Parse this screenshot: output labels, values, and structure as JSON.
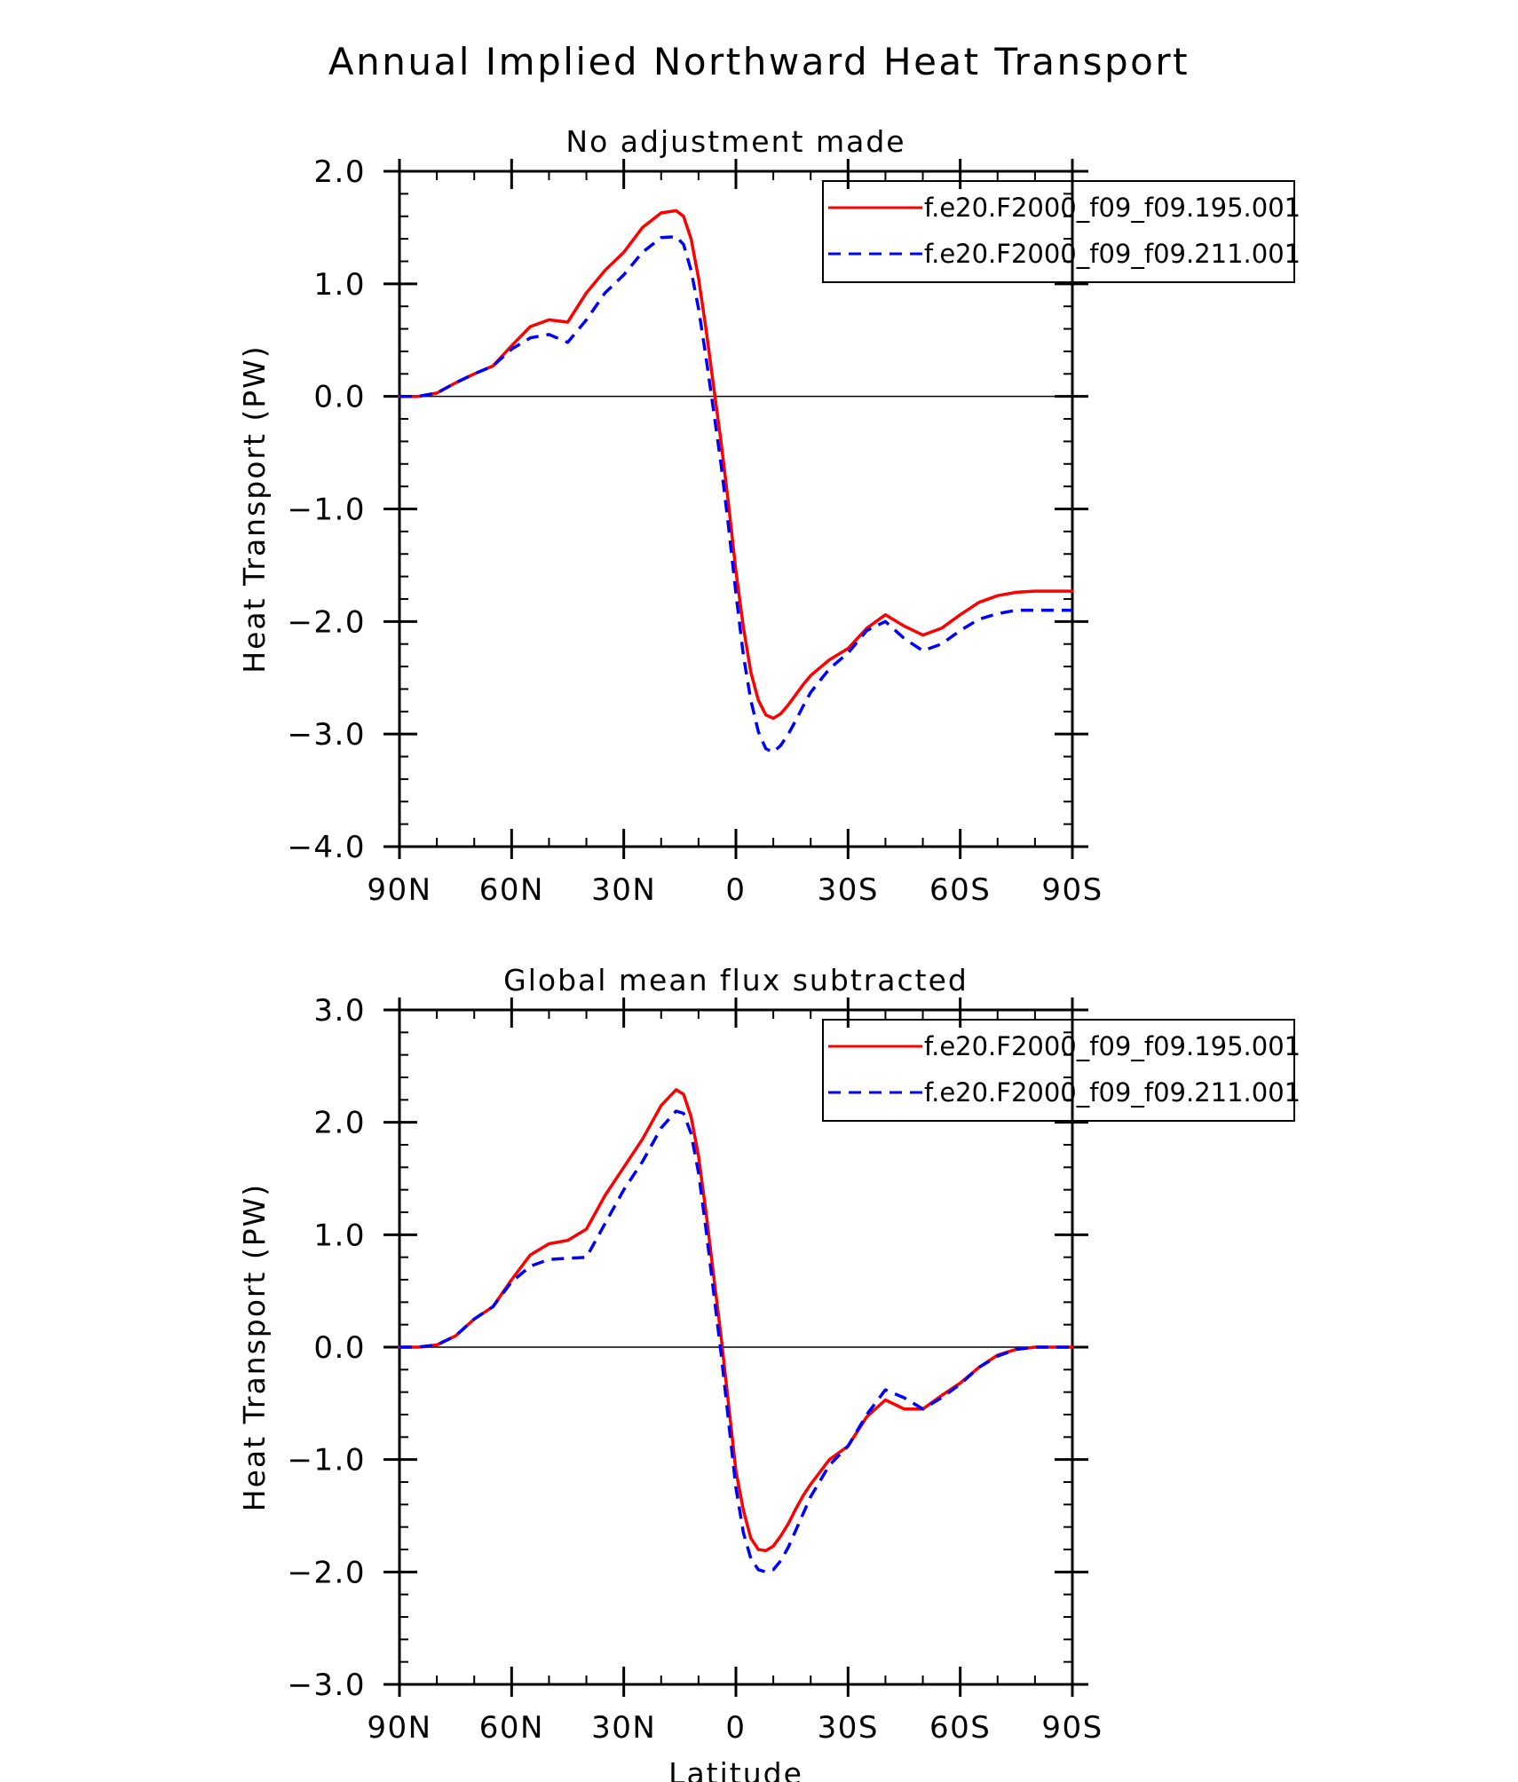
{
  "figure": {
    "title": "Annual Implied Northward Heat Transport"
  },
  "chart_data": [
    {
      "type": "line",
      "title": "No adjustment made",
      "xlabel": "",
      "ylabel": "Heat Transport (PW)",
      "xlim": [
        90,
        -90
      ],
      "ylim": [
        -4.0,
        2.0
      ],
      "x_ticks": [
        {
          "value": 90,
          "label": "90N"
        },
        {
          "value": 60,
          "label": "60N"
        },
        {
          "value": 30,
          "label": "30N"
        },
        {
          "value": 0,
          "label": "0"
        },
        {
          "value": -30,
          "label": "30S"
        },
        {
          "value": -60,
          "label": "60S"
        },
        {
          "value": -90,
          "label": "90S"
        }
      ],
      "y_ticks": [
        {
          "value": 2.0,
          "label": "2.0"
        },
        {
          "value": 1.0,
          "label": "1.0"
        },
        {
          "value": 0.0,
          "label": "0.0"
        },
        {
          "value": -1.0,
          "label": "−1.0"
        },
        {
          "value": -2.0,
          "label": "−2.0"
        },
        {
          "value": -3.0,
          "label": "−3.0"
        },
        {
          "value": -4.0,
          "label": "−4.0"
        }
      ],
      "zero_line": true,
      "legend_position": "top-right",
      "series": [
        {
          "name": "f.e20.F2000_f09_f09.195.001",
          "color": "#ff0000",
          "dash": "solid",
          "x": [
            90,
            85,
            80,
            75,
            70,
            65,
            60,
            55,
            50,
            45,
            40,
            35,
            30,
            25,
            20,
            16,
            14,
            12,
            10,
            8,
            6,
            4,
            2,
            0,
            -2,
            -4,
            -6,
            -8,
            -10,
            -12,
            -14,
            -16,
            -18,
            -20,
            -25,
            -30,
            -35,
            -40,
            -45,
            -50,
            -55,
            -60,
            -65,
            -70,
            -75,
            -80,
            -85,
            -90
          ],
          "y": [
            0.0,
            0.0,
            0.03,
            0.12,
            0.2,
            0.27,
            0.45,
            0.62,
            0.68,
            0.66,
            0.92,
            1.12,
            1.28,
            1.5,
            1.63,
            1.65,
            1.6,
            1.4,
            1.05,
            0.6,
            0.1,
            -0.4,
            -0.95,
            -1.55,
            -2.05,
            -2.45,
            -2.7,
            -2.83,
            -2.86,
            -2.82,
            -2.74,
            -2.65,
            -2.56,
            -2.48,
            -2.34,
            -2.24,
            -2.06,
            -1.94,
            -2.04,
            -2.12,
            -2.06,
            -1.94,
            -1.83,
            -1.77,
            -1.74,
            -1.73,
            -1.73,
            -1.73
          ]
        },
        {
          "name": "f.e20.F2000_f09_f09.211.001",
          "color": "#0000ff",
          "dash": "dashed",
          "x": [
            90,
            85,
            80,
            75,
            70,
            65,
            60,
            55,
            50,
            45,
            40,
            35,
            30,
            25,
            20,
            16,
            14,
            12,
            10,
            8,
            6,
            4,
            2,
            0,
            -2,
            -4,
            -6,
            -8,
            -10,
            -12,
            -14,
            -16,
            -18,
            -20,
            -25,
            -30,
            -35,
            -40,
            -45,
            -50,
            -55,
            -60,
            -65,
            -70,
            -75,
            -80,
            -85,
            -90
          ],
          "y": [
            0.0,
            0.0,
            0.03,
            0.12,
            0.2,
            0.27,
            0.42,
            0.52,
            0.55,
            0.48,
            0.68,
            0.92,
            1.08,
            1.28,
            1.41,
            1.42,
            1.35,
            1.12,
            0.78,
            0.35,
            -0.12,
            -0.6,
            -1.15,
            -1.75,
            -2.3,
            -2.7,
            -2.98,
            -3.13,
            -3.16,
            -3.1,
            -3.0,
            -2.88,
            -2.75,
            -2.63,
            -2.42,
            -2.28,
            -2.08,
            -2.0,
            -2.15,
            -2.26,
            -2.2,
            -2.08,
            -1.98,
            -1.93,
            -1.9,
            -1.9,
            -1.9,
            -1.9
          ]
        }
      ]
    },
    {
      "type": "line",
      "title": "Global mean flux subtracted",
      "xlabel": "Latitude",
      "ylabel": "Heat Transport (PW)",
      "xlim": [
        90,
        -90
      ],
      "ylim": [
        -3.0,
        3.0
      ],
      "x_ticks": [
        {
          "value": 90,
          "label": "90N"
        },
        {
          "value": 60,
          "label": "60N"
        },
        {
          "value": 30,
          "label": "30N"
        },
        {
          "value": 0,
          "label": "0"
        },
        {
          "value": -30,
          "label": "30S"
        },
        {
          "value": -60,
          "label": "60S"
        },
        {
          "value": -90,
          "label": "90S"
        }
      ],
      "y_ticks": [
        {
          "value": 3.0,
          "label": "3.0"
        },
        {
          "value": 2.0,
          "label": "2.0"
        },
        {
          "value": 1.0,
          "label": "1.0"
        },
        {
          "value": 0.0,
          "label": "0.0"
        },
        {
          "value": -1.0,
          "label": "−1.0"
        },
        {
          "value": -2.0,
          "label": "−2.0"
        },
        {
          "value": -3.0,
          "label": "−3.0"
        }
      ],
      "zero_line": true,
      "legend_position": "top-right",
      "series": [
        {
          "name": "f.e20.F2000_f09_f09.195.001",
          "color": "#ff0000",
          "dash": "solid",
          "x": [
            90,
            85,
            80,
            75,
            70,
            65,
            60,
            55,
            50,
            45,
            40,
            35,
            30,
            25,
            20,
            16,
            14,
            12,
            10,
            8,
            6,
            4,
            2,
            0,
            -2,
            -4,
            -6,
            -8,
            -10,
            -12,
            -14,
            -16,
            -18,
            -20,
            -25,
            -30,
            -35,
            -40,
            -45,
            -50,
            -55,
            -60,
            -65,
            -70,
            -75,
            -80,
            -85,
            -90
          ],
          "y": [
            0.0,
            0.0,
            0.02,
            0.1,
            0.25,
            0.36,
            0.6,
            0.82,
            0.92,
            0.95,
            1.05,
            1.35,
            1.6,
            1.85,
            2.15,
            2.29,
            2.25,
            2.05,
            1.7,
            1.2,
            0.65,
            0.1,
            -0.5,
            -1.1,
            -1.45,
            -1.7,
            -1.8,
            -1.81,
            -1.77,
            -1.68,
            -1.57,
            -1.44,
            -1.32,
            -1.22,
            -1.0,
            -0.88,
            -0.62,
            -0.47,
            -0.55,
            -0.55,
            -0.43,
            -0.32,
            -0.18,
            -0.07,
            -0.02,
            0.0,
            0.0,
            0.0
          ]
        },
        {
          "name": "f.e20.F2000_f09_f09.211.001",
          "color": "#0000ff",
          "dash": "dashed",
          "x": [
            90,
            85,
            80,
            75,
            70,
            65,
            60,
            55,
            50,
            45,
            40,
            35,
            30,
            25,
            20,
            16,
            14,
            12,
            10,
            8,
            6,
            4,
            2,
            0,
            -2,
            -4,
            -6,
            -8,
            -10,
            -12,
            -14,
            -16,
            -18,
            -20,
            -25,
            -30,
            -35,
            -40,
            -45,
            -50,
            -55,
            -60,
            -65,
            -70,
            -75,
            -80,
            -85,
            -90
          ],
          "y": [
            0.0,
            0.0,
            0.02,
            0.1,
            0.25,
            0.36,
            0.58,
            0.72,
            0.78,
            0.79,
            0.8,
            1.1,
            1.4,
            1.65,
            1.95,
            2.1,
            2.08,
            1.9,
            1.55,
            1.05,
            0.5,
            -0.05,
            -0.65,
            -1.25,
            -1.65,
            -1.88,
            -1.98,
            -2.0,
            -1.98,
            -1.9,
            -1.78,
            -1.63,
            -1.48,
            -1.33,
            -1.05,
            -0.88,
            -0.6,
            -0.38,
            -0.45,
            -0.55,
            -0.45,
            -0.33,
            -0.18,
            -0.08,
            -0.02,
            0.0,
            0.0,
            0.0
          ]
        }
      ]
    }
  ]
}
